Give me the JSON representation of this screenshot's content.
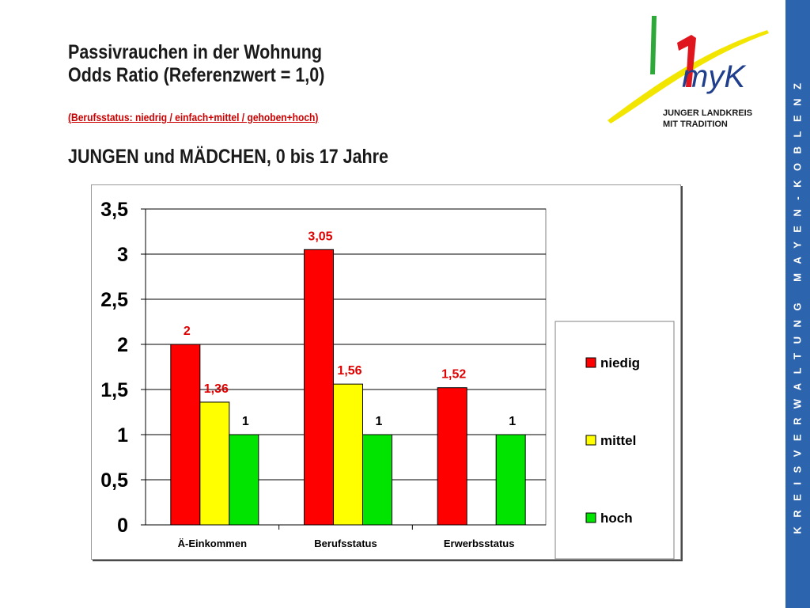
{
  "header": {
    "title_line1": "Passivrauchen in der Wohnung",
    "title_line2": "Odds Ratio (Referenzwert = 1,0)",
    "subtitle": "(Berufsstatus: niedrig  /  einfach+mittel  /  gehoben+hoch)",
    "group_title": "JUNGEN und MÄDCHEN, 0 bis 17 Jahre"
  },
  "logo": {
    "mark_text": "myK",
    "line1": "JUNGER LANDKREIS",
    "line2": "MIT TRADITION",
    "colors": {
      "green": "#2fa83a",
      "red": "#e0161e",
      "yellow": "#f2e600",
      "blue": "#1f3e8c"
    }
  },
  "sidebar": {
    "text": "KREISVERWALTUNG MAYEN-KOBLENZ",
    "color": "#2d64ae"
  },
  "chart_data": {
    "type": "bar",
    "categories": [
      "Ä-Einkommen",
      "Berufsstatus",
      "Erwerbsstatus"
    ],
    "series": [
      {
        "name": "niedig",
        "color": "#ff0000",
        "values": [
          2,
          3.05,
          1.52
        ],
        "labels": [
          "2",
          "3,05",
          "1,52"
        ]
      },
      {
        "name": "mittel",
        "color": "#ffff00",
        "values": [
          1.36,
          1.56,
          null
        ],
        "labels": [
          "1,36",
          "1,56",
          ""
        ]
      },
      {
        "name": "hoch",
        "color": "#00e400",
        "values": [
          1,
          1,
          1
        ],
        "labels": [
          "1",
          "1",
          "1"
        ]
      }
    ],
    "yticks": [
      "0",
      "0,5",
      "1",
      "1,5",
      "2",
      "2,5",
      "3",
      "3,5"
    ],
    "ylim": [
      0,
      3.5
    ],
    "grid": true,
    "legend_position": "right",
    "data_label_colors": [
      "#e00000",
      "#e00000",
      "#000000"
    ]
  }
}
